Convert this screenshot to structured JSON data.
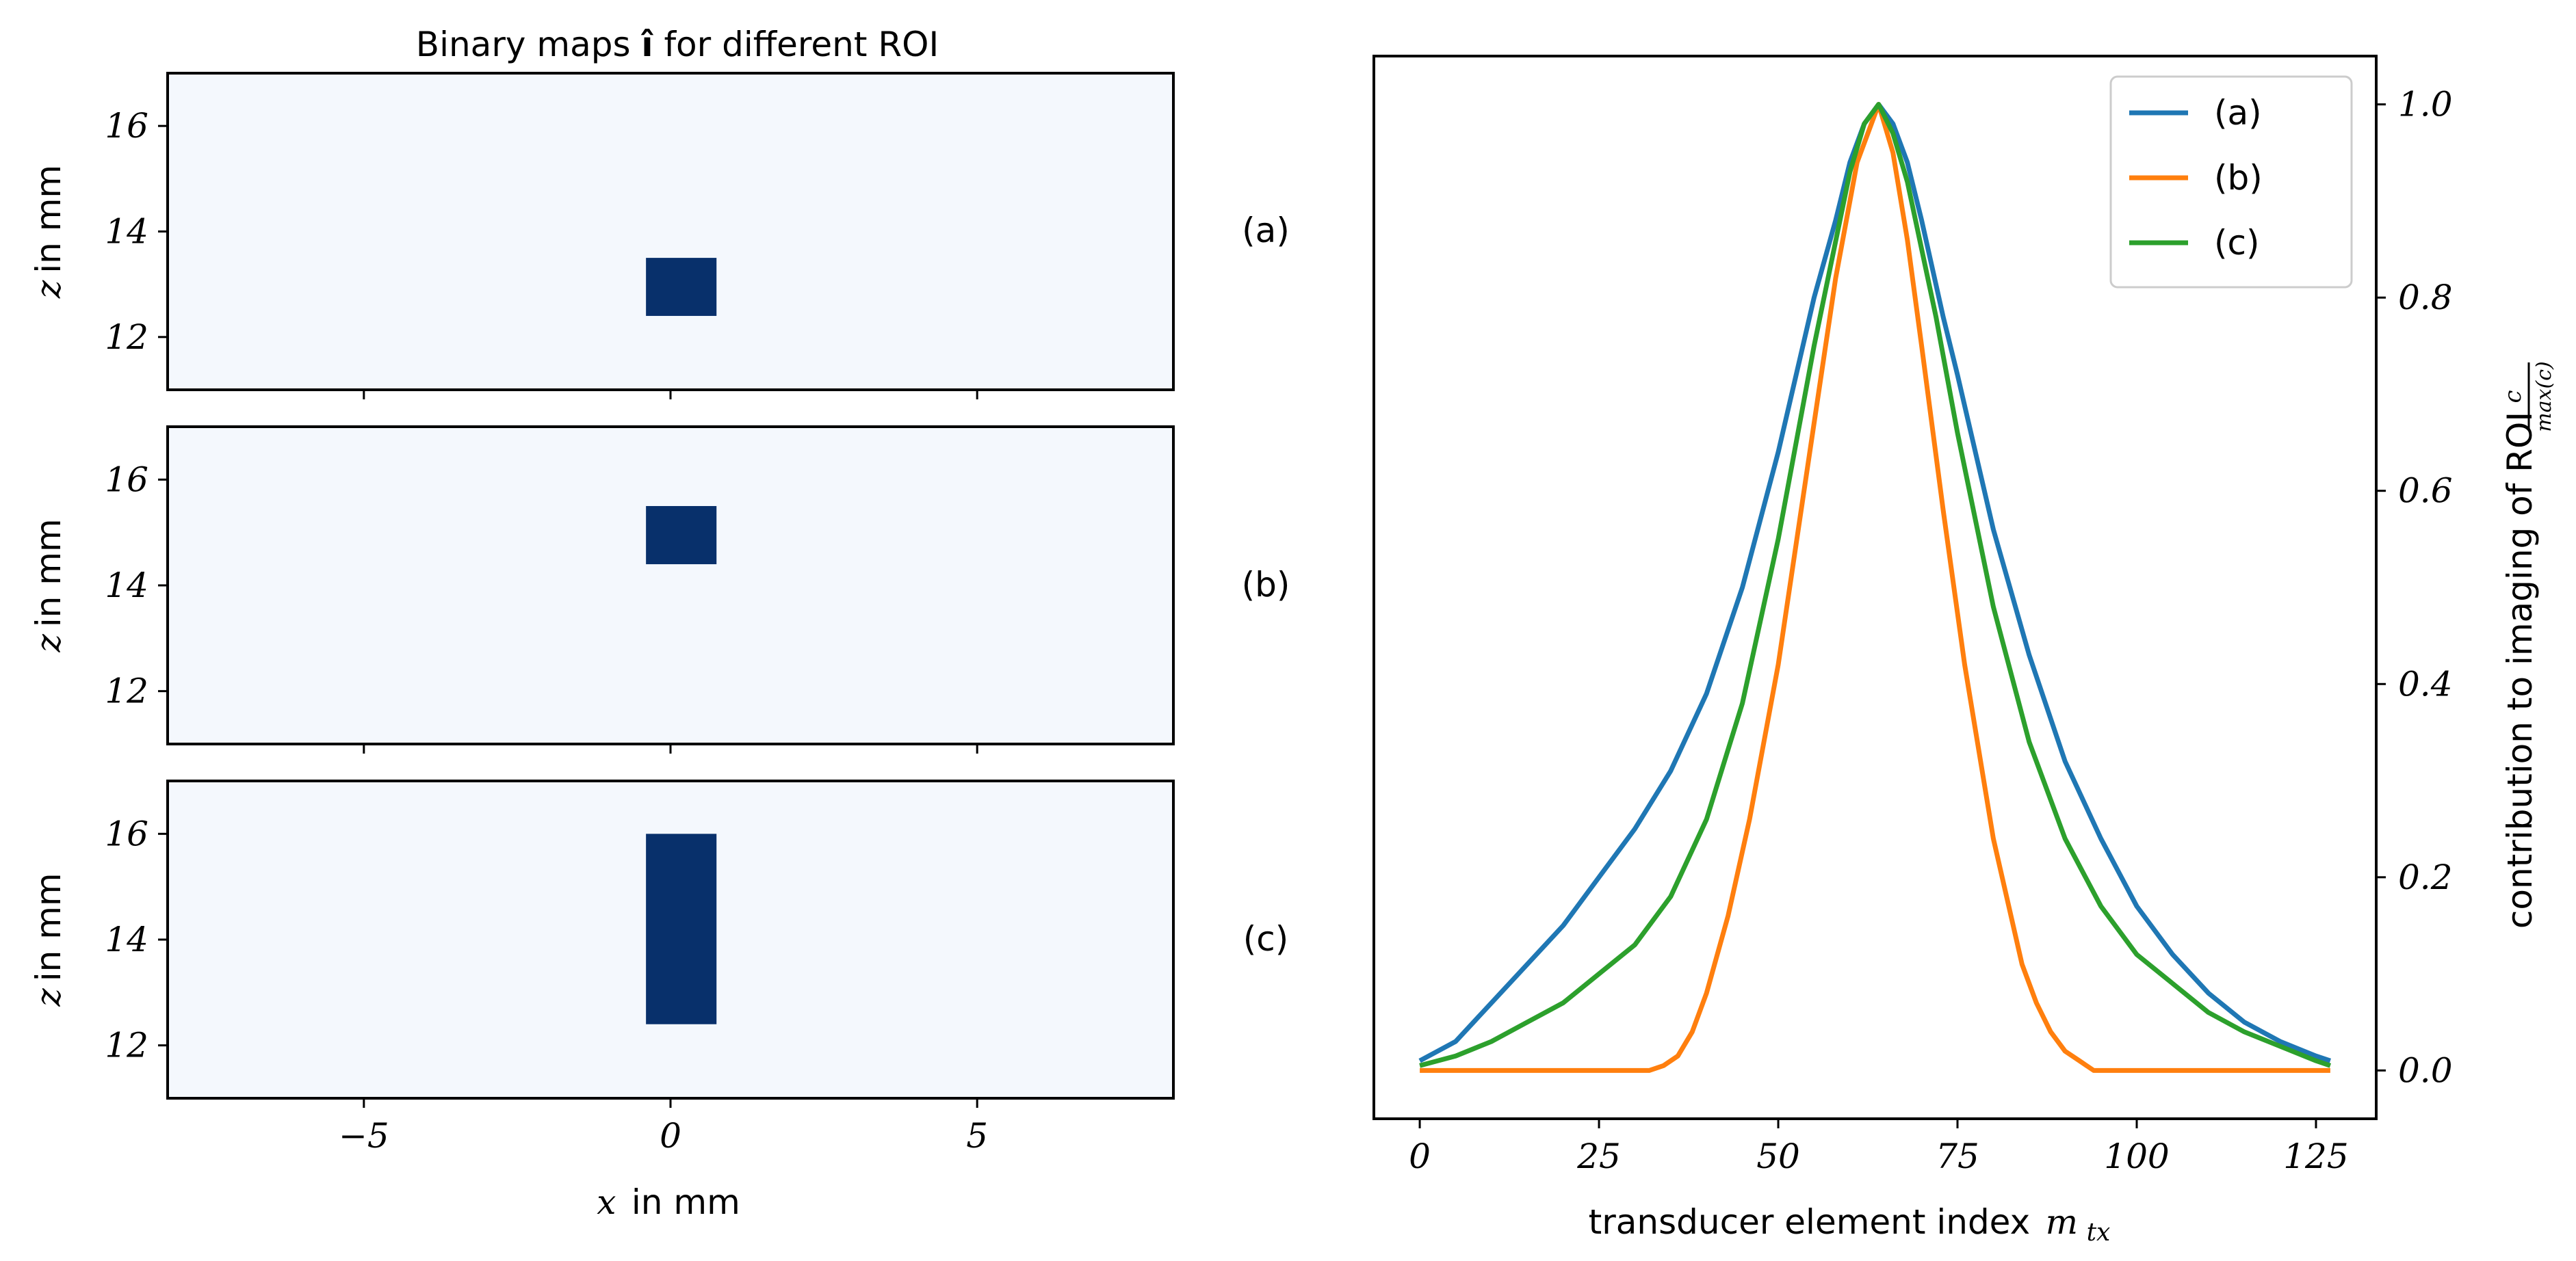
{
  "chart_data": [
    {
      "id": "a",
      "type": "heatmap",
      "title": "Binary maps",
      "title_symbol": "î",
      "title_suffix": "for different ROI",
      "xlabel_var": "x",
      "xlabel_unit": "in mm",
      "ylabel_var": "z",
      "ylabel_unit": "in mm",
      "xlim": [
        -8.2,
        8.2
      ],
      "ylim": [
        11.0,
        17.0
      ],
      "yticks": [
        12,
        14,
        16
      ],
      "xticks": [
        -5,
        0,
        5
      ],
      "xtick_labels": [
        "−5",
        "0",
        "5"
      ],
      "row_label": "(a)",
      "roi": {
        "x0": -0.4,
        "x1": 0.75,
        "z0": 12.4,
        "z1": 13.5
      },
      "colors": {
        "background": "#f4f8fd",
        "roi": "#08306b"
      }
    },
    {
      "id": "b",
      "type": "heatmap",
      "xlim": [
        -8.2,
        8.2
      ],
      "ylim": [
        11.0,
        17.0
      ],
      "yticks": [
        12,
        14,
        16
      ],
      "xticks": [
        -5,
        0,
        5
      ],
      "row_label": "(b)",
      "ylabel_var": "z",
      "ylabel_unit": "in mm",
      "roi": {
        "x0": -0.4,
        "x1": 0.75,
        "z0": 14.4,
        "z1": 15.5
      },
      "colors": {
        "background": "#f4f8fd",
        "roi": "#08306b"
      }
    },
    {
      "id": "c",
      "type": "heatmap",
      "xlim": [
        -8.2,
        8.2
      ],
      "ylim": [
        11.0,
        17.0
      ],
      "yticks": [
        12,
        14,
        16
      ],
      "xticks": [
        -5,
        0,
        5
      ],
      "row_label": "(c)",
      "ylabel_var": "z",
      "ylabel_unit": "in mm",
      "roi": {
        "x0": -0.4,
        "x1": 0.75,
        "z0": 12.4,
        "z1": 16.0
      },
      "colors": {
        "background": "#f4f8fd",
        "roi": "#08306b"
      }
    },
    {
      "id": "curves",
      "type": "line",
      "xlabel": "transducer element index",
      "xlabel_var": "m",
      "xlabel_sub": "tx",
      "ylabel": "contribution to imaging of ROI",
      "ylabel_frac_num": "c",
      "ylabel_frac_den": "max(c)",
      "xlim": [
        -6.4,
        133.4
      ],
      "ylim": [
        -0.05,
        1.05
      ],
      "xticks": [
        0,
        25,
        50,
        75,
        100,
        125
      ],
      "yticks": [
        0.0,
        0.2,
        0.4,
        0.6,
        0.8,
        1.0
      ],
      "ytick_labels": [
        "0.0",
        "0.2",
        "0.4",
        "0.6",
        "0.8",
        "1.0"
      ],
      "legend_position": "top-right",
      "series": [
        {
          "name": "(a)",
          "color": "#1f77b4",
          "x": [
            0,
            5,
            10,
            15,
            20,
            25,
            30,
            35,
            40,
            45,
            50,
            55,
            58,
            60,
            62,
            64,
            66,
            68,
            70,
            73,
            75,
            80,
            85,
            90,
            95,
            100,
            105,
            110,
            115,
            120,
            125,
            127
          ],
          "y": [
            0.01,
            0.03,
            0.07,
            0.11,
            0.15,
            0.2,
            0.25,
            0.31,
            0.39,
            0.5,
            0.64,
            0.8,
            0.88,
            0.94,
            0.98,
            1.0,
            0.98,
            0.94,
            0.88,
            0.78,
            0.72,
            0.56,
            0.43,
            0.32,
            0.24,
            0.17,
            0.12,
            0.08,
            0.05,
            0.03,
            0.015,
            0.01
          ]
        },
        {
          "name": "(b)",
          "color": "#ff7f0e",
          "x": [
            0,
            10,
            20,
            25,
            30,
            32,
            34,
            36,
            38,
            40,
            43,
            46,
            50,
            54,
            58,
            61,
            64,
            66,
            68,
            70,
            73,
            76,
            80,
            84,
            86,
            88,
            90,
            92,
            94,
            96,
            100,
            110,
            120,
            127
          ],
          "y": [
            0.0,
            0.0,
            0.0,
            0.0,
            0.0,
            0.0,
            0.005,
            0.015,
            0.04,
            0.08,
            0.16,
            0.26,
            0.42,
            0.62,
            0.82,
            0.94,
            1.0,
            0.95,
            0.86,
            0.75,
            0.58,
            0.42,
            0.24,
            0.11,
            0.07,
            0.04,
            0.02,
            0.01,
            0.0,
            0.0,
            0.0,
            0.0,
            0.0,
            0.0
          ]
        },
        {
          "name": "(c)",
          "color": "#2ca02c",
          "x": [
            0,
            5,
            10,
            15,
            20,
            25,
            30,
            35,
            40,
            45,
            50,
            55,
            60,
            62,
            64,
            66,
            68,
            72,
            75,
            80,
            85,
            90,
            95,
            100,
            105,
            110,
            115,
            120,
            125,
            127
          ],
          "y": [
            0.005,
            0.015,
            0.03,
            0.05,
            0.07,
            0.1,
            0.13,
            0.18,
            0.26,
            0.38,
            0.55,
            0.75,
            0.93,
            0.98,
            1.0,
            0.97,
            0.92,
            0.78,
            0.66,
            0.48,
            0.34,
            0.24,
            0.17,
            0.12,
            0.09,
            0.06,
            0.04,
            0.025,
            0.01,
            0.005
          ]
        }
      ]
    }
  ]
}
